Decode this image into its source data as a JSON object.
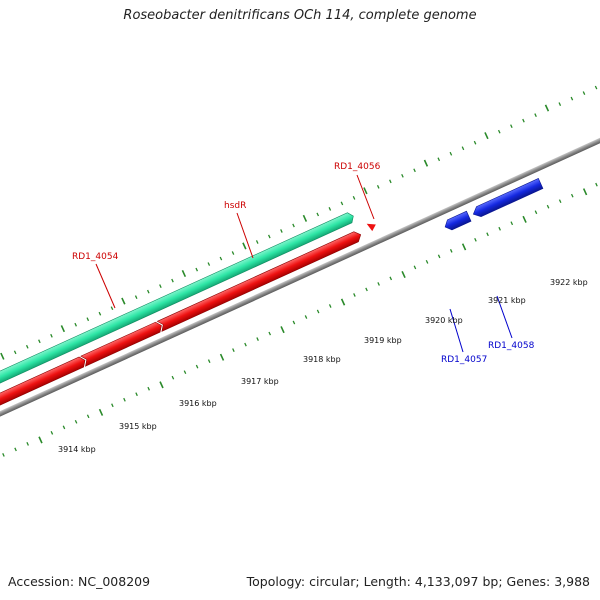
{
  "title": "Roseobacter denitrificans OCh 114, complete genome",
  "footer": {
    "accession": "Accession: NC_008209",
    "summary": "Topology: circular; Length: 4,133,097 bp; Genes: 3,988"
  },
  "colors": {
    "background": "#ffffff",
    "backbone": "#888888",
    "tick": "#2a8a2a",
    "forward_gene": "#2ee6a6",
    "reverse_gene": "#ee1111",
    "blue_gene": "#1428e0",
    "label_red": "#cc0000",
    "label_blue": "#0000cc"
  },
  "scale_labels": [
    "3914 kbp",
    "3915 kbp",
    "3916 kbp",
    "3917 kbp",
    "3918 kbp",
    "3919 kbp",
    "3920 kbp",
    "3921 kbp",
    "3922 kbp"
  ],
  "gene_labels": {
    "rd1_4054": "RD1_4054",
    "hsdr": "hsdR",
    "rd1_4056": "RD1_4056",
    "rd1_4057": "RD1_4057",
    "rd1_4058": "RD1_4058"
  },
  "icons": {
    "forward_strand": "green-arrow-track",
    "reverse_strand": "red-arrow-track",
    "blue_strand": "blue-arrow-track"
  }
}
